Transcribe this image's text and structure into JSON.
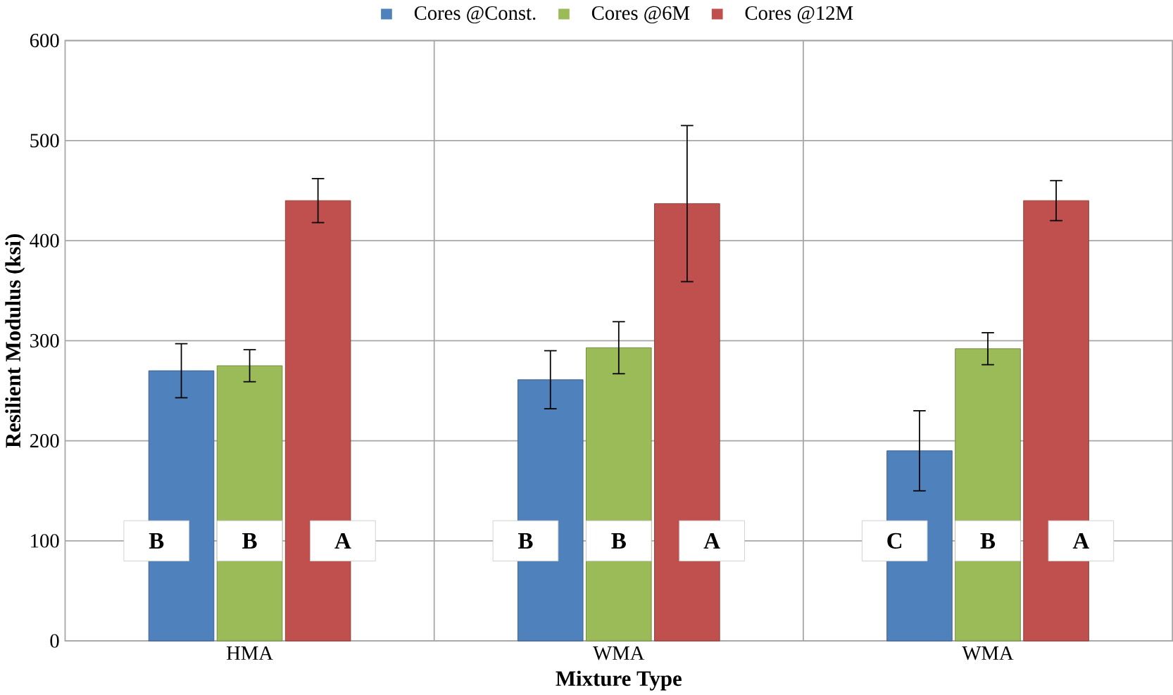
{
  "chart_data": {
    "type": "bar",
    "xlabel": "Mixture Type",
    "ylabel": "Resilient Modulus (ksi)",
    "categories": [
      "HMA",
      "WMA",
      "WMA"
    ],
    "series": [
      {
        "name": "Cores @Const.",
        "color": "#4f81bd",
        "values": [
          270,
          261,
          190
        ],
        "errors": [
          27,
          29,
          40
        ],
        "value_labels": [
          "B",
          "B",
          "C"
        ]
      },
      {
        "name": "Cores @6M",
        "color": "#9bbb59",
        "values": [
          275,
          293,
          292
        ],
        "errors": [
          16,
          26,
          16
        ],
        "value_labels": [
          "B",
          "B",
          "B"
        ]
      },
      {
        "name": "Cores @12M",
        "color": "#c0504d",
        "values": [
          440,
          437,
          440
        ],
        "errors": [
          22,
          78,
          20
        ],
        "value_labels": [
          "A",
          "A",
          "A"
        ]
      }
    ],
    "ylim": [
      0,
      600
    ],
    "yticks": [
      0,
      100,
      200,
      300,
      400,
      500,
      600
    ],
    "grid": true,
    "legend": "top"
  }
}
